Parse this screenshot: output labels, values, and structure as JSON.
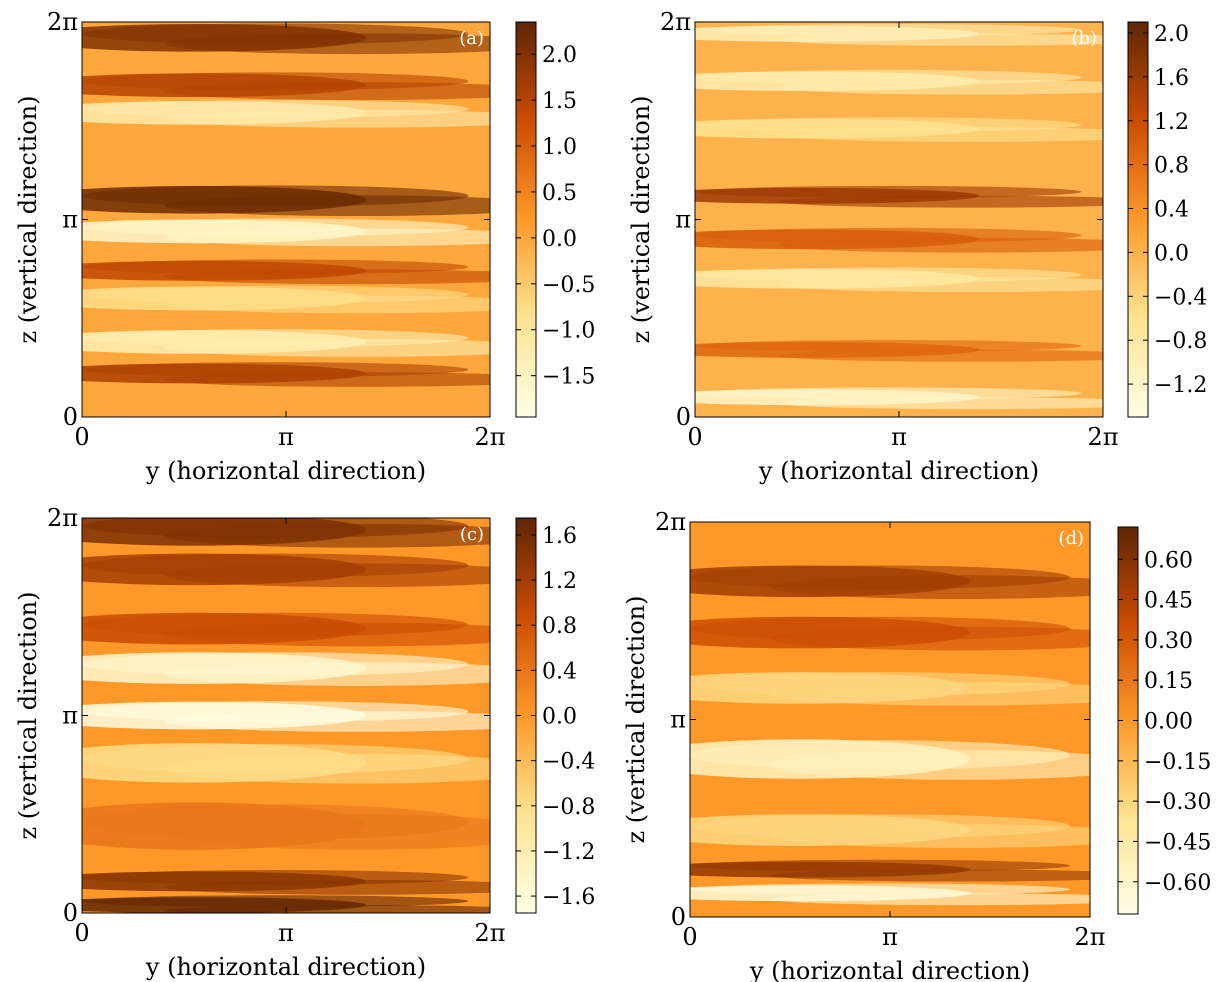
{
  "chart_data": [
    {
      "type": "heatmap",
      "panel_label": "(a)",
      "xlabel": "y (horizontal direction)",
      "ylabel": "z (vertical direction)",
      "x_ticks": [
        "0",
        "π",
        "2π"
      ],
      "y_ticks": [
        "0",
        "π",
        "2π"
      ],
      "colorbar": {
        "min": -1.95,
        "max": 2.35,
        "ticks": [
          2.0,
          1.5,
          1.0,
          0.5,
          0.0,
          -0.5,
          -1.0,
          -1.5
        ],
        "tick_labels": [
          "2.0",
          "1.5",
          "1.0",
          "0.5",
          "0.0",
          "−0.5",
          "−1.0",
          "−1.5"
        ]
      },
      "bands": [
        {
          "z": 0.96,
          "v": 2.0,
          "w": 0.035
        },
        {
          "z": 0.84,
          "v": 1.5,
          "w": 0.03
        },
        {
          "z": 0.77,
          "v": -1.2,
          "w": 0.03
        },
        {
          "z": 0.55,
          "v": 2.2,
          "w": 0.035
        },
        {
          "z": 0.47,
          "v": -1.6,
          "w": 0.03
        },
        {
          "z": 0.37,
          "v": 1.4,
          "w": 0.025
        },
        {
          "z": 0.3,
          "v": -0.8,
          "w": 0.03
        },
        {
          "z": 0.19,
          "v": -1.3,
          "w": 0.03
        },
        {
          "z": 0.11,
          "v": 1.6,
          "w": 0.025
        }
      ]
    },
    {
      "type": "heatmap",
      "panel_label": "(b)",
      "xlabel": "y (horizontal direction)",
      "ylabel": "z (vertical direction)",
      "x_ticks": [
        "0",
        "π",
        "2π"
      ],
      "y_ticks": [
        "0",
        "π",
        "2π"
      ],
      "colorbar": {
        "min": -1.5,
        "max": 2.1,
        "ticks": [
          2.0,
          1.6,
          1.2,
          0.8,
          0.4,
          0.0,
          -0.4,
          -0.8,
          -1.2
        ],
        "tick_labels": [
          "2.0",
          "1.6",
          "1.2",
          "0.8",
          "0.4",
          "0.0",
          "−0.4",
          "−0.8",
          "−1.2"
        ]
      },
      "bands": [
        {
          "z": 0.97,
          "v": -1.0,
          "w": 0.02
        },
        {
          "z": 0.85,
          "v": -0.9,
          "w": 0.025
        },
        {
          "z": 0.73,
          "v": -0.6,
          "w": 0.025
        },
        {
          "z": 0.56,
          "v": 1.6,
          "w": 0.02
        },
        {
          "z": 0.45,
          "v": 1.0,
          "w": 0.025
        },
        {
          "z": 0.35,
          "v": -0.8,
          "w": 0.025
        },
        {
          "z": 0.17,
          "v": 0.9,
          "w": 0.02
        },
        {
          "z": 0.05,
          "v": -1.2,
          "w": 0.02
        }
      ]
    },
    {
      "type": "heatmap",
      "panel_label": "(c)",
      "xlabel": "y (horizontal direction)",
      "ylabel": "z (vertical direction)",
      "x_ticks": [
        "0",
        "π",
        "2π"
      ],
      "y_ticks": [
        "0",
        "π",
        "2π"
      ],
      "colorbar": {
        "min": -1.75,
        "max": 1.75,
        "ticks": [
          1.6,
          1.2,
          0.8,
          0.4,
          0.0,
          -0.4,
          -0.8,
          -1.2,
          -1.6
        ],
        "tick_labels": [
          "1.6",
          "1.2",
          "0.8",
          "0.4",
          "0.0",
          "−0.4",
          "−0.8",
          "−1.2",
          "−1.6"
        ]
      },
      "bands": [
        {
          "z": 0.97,
          "v": 1.5,
          "w": 0.04
        },
        {
          "z": 0.87,
          "v": 1.2,
          "w": 0.04
        },
        {
          "z": 0.72,
          "v": 0.9,
          "w": 0.04
        },
        {
          "z": 0.62,
          "v": -1.5,
          "w": 0.04
        },
        {
          "z": 0.5,
          "v": -1.7,
          "w": 0.035
        },
        {
          "z": 0.38,
          "v": -0.8,
          "w": 0.05
        },
        {
          "z": 0.22,
          "v": 0.4,
          "w": 0.06
        },
        {
          "z": 0.08,
          "v": 1.4,
          "w": 0.025
        },
        {
          "z": 0.02,
          "v": 1.7,
          "w": 0.02
        }
      ]
    },
    {
      "type": "heatmap",
      "panel_label": "(d)",
      "xlabel": "y (horizontal direction)",
      "ylabel": "z (vertical direction)",
      "x_ticks": [
        "0",
        "π",
        "2π"
      ],
      "y_ticks": [
        "0",
        "π",
        "2π"
      ],
      "colorbar": {
        "min": -0.72,
        "max": 0.72,
        "ticks": [
          0.6,
          0.45,
          0.3,
          0.15,
          0.0,
          -0.15,
          -0.3,
          -0.45,
          -0.6
        ],
        "tick_labels": [
          "0.60",
          "0.45",
          "0.30",
          "0.15",
          "0.00",
          "−0.15",
          "−0.30",
          "−0.45",
          "−0.60"
        ]
      },
      "bands": [
        {
          "z": 0.85,
          "v": 0.5,
          "w": 0.04
        },
        {
          "z": 0.72,
          "v": 0.35,
          "w": 0.04
        },
        {
          "z": 0.58,
          "v": -0.3,
          "w": 0.04
        },
        {
          "z": 0.4,
          "v": -0.55,
          "w": 0.05
        },
        {
          "z": 0.22,
          "v": -0.3,
          "w": 0.04
        },
        {
          "z": 0.12,
          "v": 0.55,
          "w": 0.02
        },
        {
          "z": 0.06,
          "v": -0.65,
          "w": 0.02
        }
      ]
    }
  ]
}
